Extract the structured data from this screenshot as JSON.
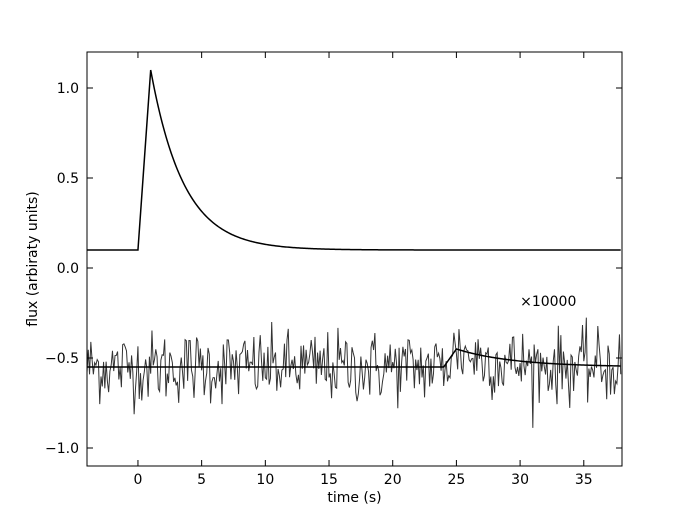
{
  "chart_data": {
    "type": "line",
    "title": "",
    "xlabel": "time (s)",
    "ylabel": "flux (arbiraty units)",
    "xlim": [
      -4,
      38
    ],
    "ylim": [
      -1.1,
      1.2
    ],
    "grid": false,
    "x_ticks": [
      0,
      5,
      10,
      15,
      20,
      25,
      30,
      35
    ],
    "x_tick_labels": [
      "0",
      "5",
      "10",
      "15",
      "20",
      "25",
      "30",
      "35"
    ],
    "y_ticks": [
      1.0,
      0.5,
      0.0,
      -0.5,
      -1.0
    ],
    "y_tick_labels": [
      "1.0",
      "0.5",
      "0.0",
      "−0.5",
      "−1.0"
    ],
    "series": [
      {
        "color": "#000000",
        "description_points": [
          [
            -4,
            0.1
          ],
          [
            0,
            0.1
          ],
          [
            1,
            1.1
          ],
          [
            2,
            0.82
          ],
          [
            3,
            0.62
          ],
          [
            4,
            0.48
          ],
          [
            5,
            0.38
          ],
          [
            6,
            0.3
          ],
          [
            7,
            0.25
          ],
          [
            8,
            0.21
          ],
          [
            10,
            0.16
          ],
          [
            12,
            0.13
          ],
          [
            15,
            0.11
          ],
          [
            20,
            0.1
          ],
          [
            38,
            0.1
          ]
        ]
      },
      {
        "color": "#333333",
        "description_points": []
      },
      {
        "color": "#000000",
        "description_points": [
          [
            -4,
            -0.55
          ],
          [
            24,
            -0.55
          ],
          [
            25,
            -0.45
          ],
          [
            26,
            -0.47
          ],
          [
            28,
            -0.5
          ],
          [
            30,
            -0.52
          ],
          [
            33,
            -0.535
          ],
          [
            38,
            -0.545
          ]
        ]
      }
    ],
    "annotations": [
      {
        "text": "×10000",
        "x": 30,
        "y": -0.21
      }
    ]
  }
}
